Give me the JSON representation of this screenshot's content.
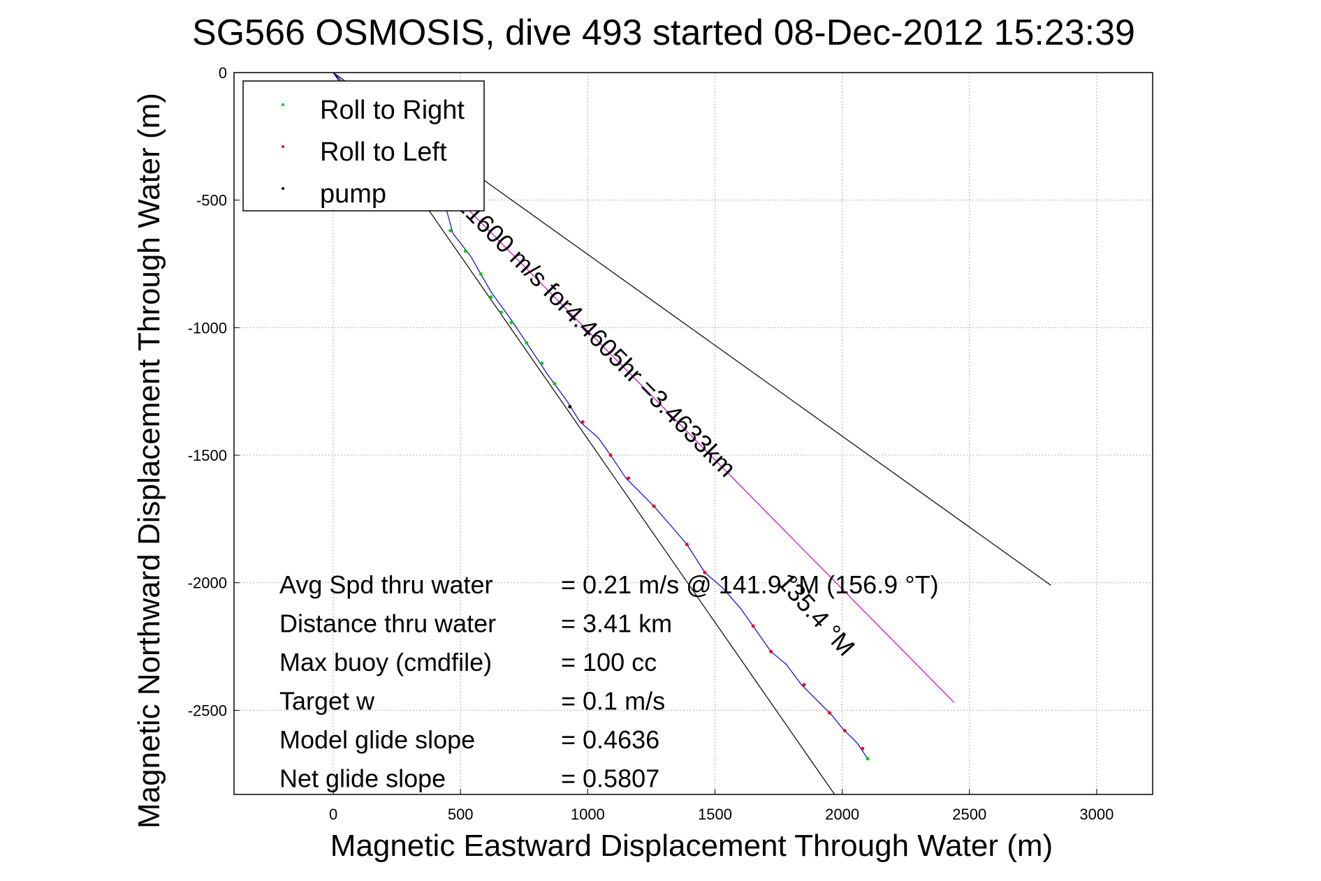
{
  "chart_data": {
    "type": "line",
    "title": "SG566 OSMOSIS, dive 493 started 08-Dec-2012 15:23:39",
    "xlabel": "Magnetic Eastward Displacement Through Water (m)",
    "ylabel": "Magnetic Northward Displacement Through Water (m)",
    "xlim": [
      -390,
      3220
    ],
    "ylim": [
      -2830,
      0
    ],
    "xticks": [
      0,
      500,
      1000,
      1500,
      2000,
      2500,
      3000
    ],
    "yticks": [
      0,
      -500,
      -1000,
      -1500,
      -2000,
      -2500
    ],
    "xtick_labels": [
      "0",
      "500",
      "1000",
      "1500",
      "2000",
      "2500",
      "3000"
    ],
    "ytick_labels": [
      "0",
      "-500",
      "-1000",
      "-1500",
      "-2000",
      "-2500"
    ],
    "grid": true,
    "legend": {
      "position": "top-left",
      "entries": [
        {
          "label": "Roll to Right",
          "color": "#00cc00"
        },
        {
          "label": "Roll to Left",
          "color": "#ff0000"
        },
        {
          "label": "pump",
          "color": "#000000"
        }
      ]
    },
    "track": {
      "color": "#0000ff",
      "points": [
        [
          0,
          0
        ],
        [
          150,
          -160
        ],
        [
          300,
          -330
        ],
        [
          440,
          -520
        ],
        [
          470,
          -630
        ],
        [
          540,
          -720
        ],
        [
          620,
          -860
        ],
        [
          700,
          -970
        ],
        [
          760,
          -1060
        ],
        [
          840,
          -1180
        ],
        [
          920,
          -1290
        ],
        [
          970,
          -1370
        ],
        [
          1040,
          -1430
        ],
        [
          1090,
          -1500
        ],
        [
          1150,
          -1590
        ],
        [
          1200,
          -1640
        ],
        [
          1260,
          -1700
        ],
        [
          1330,
          -1780
        ],
        [
          1390,
          -1850
        ],
        [
          1460,
          -1960
        ],
        [
          1530,
          -2020
        ],
        [
          1600,
          -2100
        ],
        [
          1650,
          -2170
        ],
        [
          1720,
          -2270
        ],
        [
          1780,
          -2320
        ],
        [
          1840,
          -2400
        ],
        [
          1900,
          -2460
        ],
        [
          1960,
          -2520
        ],
        [
          2000,
          -2570
        ],
        [
          2060,
          -2630
        ],
        [
          2100,
          -2690
        ]
      ]
    },
    "reference_lines": [
      {
        "name": "heading-line-155",
        "color": "#cc00cc",
        "points": [
          [
            0,
            0
          ],
          [
            2440,
            -2470
          ]
        ]
      },
      {
        "name": "heading-line-steep",
        "color": "#000000",
        "points": [
          [
            0,
            0
          ],
          [
            1970,
            -2830
          ]
        ]
      },
      {
        "name": "heading-line-shallow",
        "color": "#000000",
        "points": [
          [
            0,
            0
          ],
          [
            2820,
            -2010
          ]
        ]
      }
    ],
    "markers": {
      "roll_right": {
        "color": "#00cc00",
        "points": [
          [
            460,
            -620
          ],
          [
            520,
            -700
          ],
          [
            580,
            -790
          ],
          [
            620,
            -880
          ],
          [
            660,
            -940
          ],
          [
            700,
            -980
          ],
          [
            760,
            -1060
          ],
          [
            820,
            -1140
          ],
          [
            870,
            -1220
          ],
          [
            2100,
            -2690
          ]
        ]
      },
      "roll_left": {
        "color": "#ff0000",
        "points": [
          [
            980,
            -1370
          ],
          [
            1090,
            -1500
          ],
          [
            1160,
            -1590
          ],
          [
            1260,
            -1700
          ],
          [
            1390,
            -1850
          ],
          [
            1460,
            -1960
          ],
          [
            1650,
            -2170
          ],
          [
            1720,
            -2270
          ],
          [
            1850,
            -2400
          ],
          [
            1950,
            -2510
          ],
          [
            2010,
            -2580
          ],
          [
            2080,
            -2650
          ]
        ]
      },
      "pump": {
        "color": "#000000",
        "points": [
          [
            930,
            -1310
          ]
        ]
      }
    },
    "annotations": [
      {
        "name": "line-annotation-main",
        "text": "155.3 °M 0.21600 m/s for4.4605hr =3.4633km",
        "x": 120,
        "y": -160,
        "angle": 45.3
      },
      {
        "name": "line-annotation-secondary",
        "text": "135.4 °M",
        "x": 1740,
        "y": -2000,
        "angle": 48
      }
    ],
    "stats": [
      {
        "label": "Avg Spd thru water",
        "value": "=  0.21 m/s @ 141.9 °M (156.9 °T)"
      },
      {
        "label": "Distance thru water",
        "value": "=  3.41 km"
      },
      {
        "label": "Max buoy (cmdfile)",
        "value": "= 100 cc"
      },
      {
        "label": "Target w",
        "value": "= 0.1 m/s"
      },
      {
        "label": "Model glide slope",
        "value": "= 0.4636"
      },
      {
        "label": "Net glide slope",
        "value": "= 0.5807"
      }
    ]
  }
}
